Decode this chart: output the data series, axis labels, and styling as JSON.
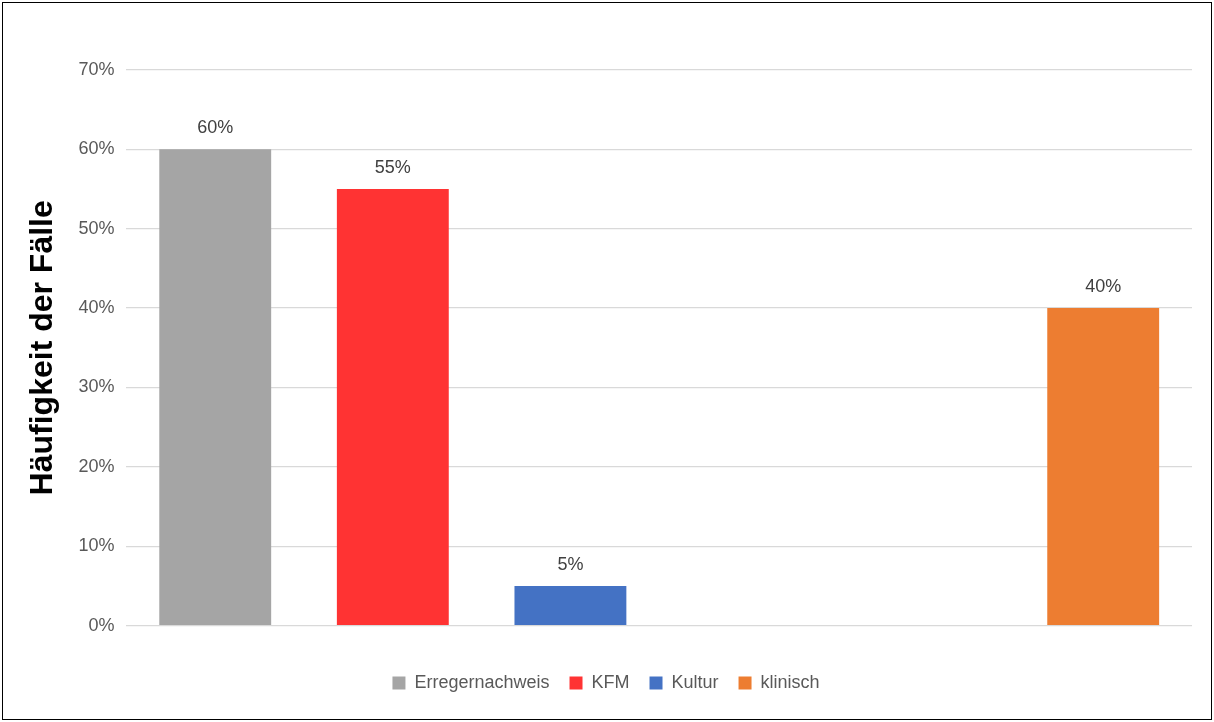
{
  "chart_data": {
    "type": "bar",
    "ylabel": "Häufigkeit der Fälle",
    "categories": [
      null,
      null,
      null,
      null,
      null,
      null
    ],
    "series": [
      {
        "name": "Erregernachweis",
        "color": "#a5a5a5",
        "values": [
          60,
          null,
          null,
          null,
          null,
          null
        ],
        "value_labels": [
          "60%",
          null,
          null,
          null,
          null,
          null
        ]
      },
      {
        "name": "KFM",
        "color": "#ff3333",
        "values": [
          null,
          55,
          null,
          null,
          null,
          null
        ],
        "value_labels": [
          null,
          "55%",
          null,
          null,
          null,
          null
        ]
      },
      {
        "name": "Kultur",
        "color": "#4472c4",
        "values": [
          null,
          null,
          5,
          null,
          null,
          null
        ],
        "value_labels": [
          null,
          null,
          "5%",
          null,
          null,
          null
        ]
      },
      {
        "name": "klinisch",
        "color": "#ed7d31",
        "values": [
          null,
          null,
          null,
          null,
          null,
          40
        ],
        "value_labels": [
          null,
          null,
          null,
          null,
          null,
          "40%"
        ]
      }
    ],
    "ylim": [
      0,
      70
    ],
    "yticks": [
      {
        "value": 0,
        "label": "0%"
      },
      {
        "value": 10,
        "label": "10%"
      },
      {
        "value": 20,
        "label": "20%"
      },
      {
        "value": 30,
        "label": "30%"
      },
      {
        "value": 40,
        "label": "40%"
      },
      {
        "value": 50,
        "label": "50%"
      },
      {
        "value": 60,
        "label": "60%"
      },
      {
        "value": 70,
        "label": "70%"
      }
    ],
    "grid": "y",
    "legend": "bottom"
  }
}
